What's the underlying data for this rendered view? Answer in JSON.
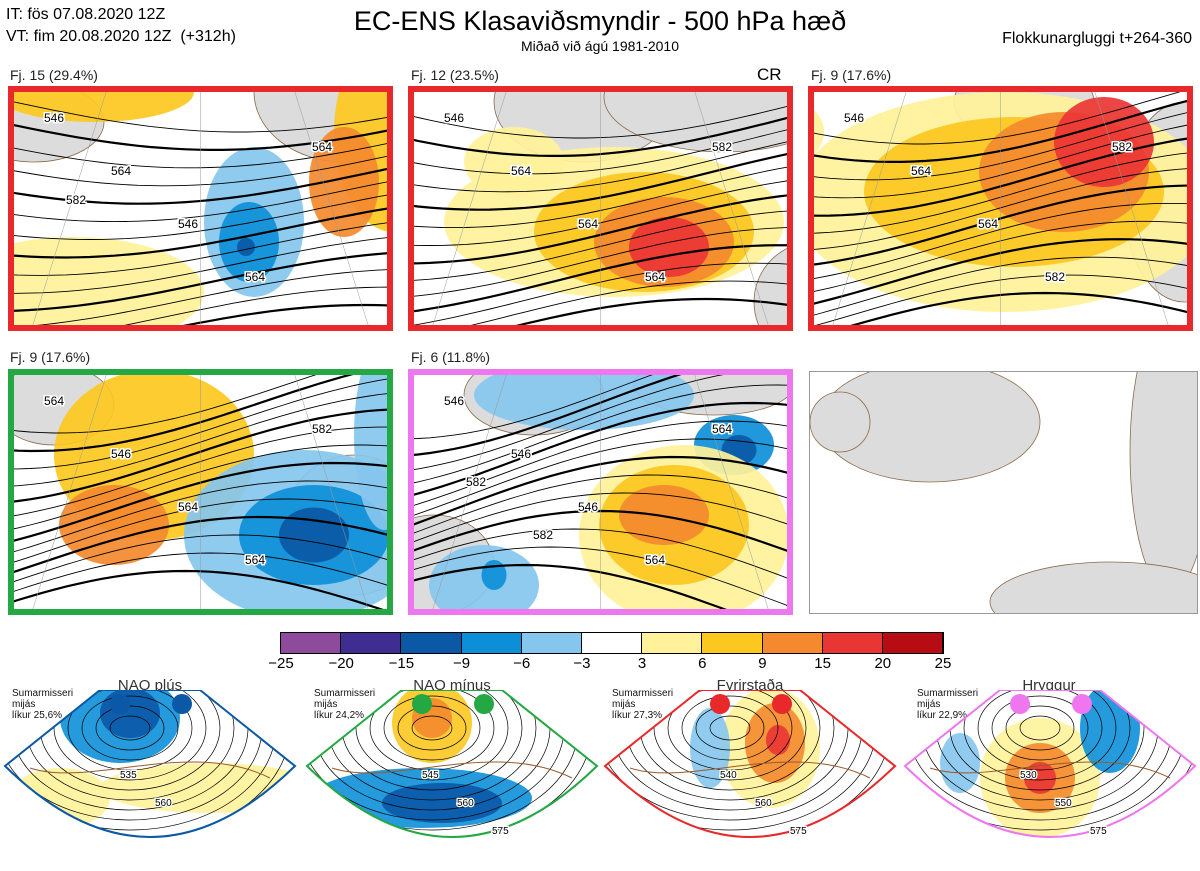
{
  "header": {
    "line_it": "IT: fös 07.08.2020 12Z",
    "line_vt": "VT: fim 20.08.2020 12Z  (+312h)",
    "title": "EC-ENS Klasaviðsmyndir - 500 hPa hæð",
    "subtitle": "Miðað við ágú 1981-2010",
    "window": "Flokkunargluggi t+264-360"
  },
  "panels": [
    {
      "label": "Fj. 15 (29.4%)",
      "border": "#e8282a",
      "contours": [
        "546",
        "564",
        "546",
        "564",
        "564",
        "582"
      ]
    },
    {
      "label": "Fj. 12 (23.5%)",
      "border": "#e8282a",
      "extra": "CR",
      "contours": [
        "546",
        "564",
        "564",
        "564",
        "582"
      ]
    },
    {
      "label": "Fj. 9 (17.6%)",
      "border": "#e8282a",
      "contours": [
        "546",
        "564",
        "564",
        "582",
        "582"
      ]
    },
    {
      "label": "Fj. 9 (17.6%)",
      "border": "#23a843",
      "contours": [
        "564",
        "546",
        "564",
        "564",
        "582"
      ]
    },
    {
      "label": "Fj. 6 (11.8%)",
      "border": "#ee76ee",
      "contours": [
        "546",
        "546",
        "546",
        "564",
        "564",
        "582",
        "582"
      ]
    }
  ],
  "colorbar": {
    "ticks": [
      "−25",
      "−20",
      "−15",
      "−9",
      "−6",
      "−3",
      "3",
      "6",
      "9",
      "15",
      "20",
      "25"
    ],
    "colors": [
      "#8e4b9c",
      "#3f2d91",
      "#0b58a6",
      "#0d8fd8",
      "#85c6ee",
      "#ffffff",
      "#fff29a",
      "#fcc820",
      "#f4892e",
      "#ea3535",
      "#b80c14"
    ]
  },
  "regimes": [
    {
      "title": "NAO plús",
      "color": "#0b58a6",
      "note": "Sumarmisseri\nmijás\nlíkur 25,6%",
      "contours": [
        "535",
        "560"
      ]
    },
    {
      "title": "NAO mínus",
      "color": "#23a843",
      "note": "Sumarmisseri\nmijás\nlíkur 24,2%",
      "contours": [
        "545",
        "560",
        "575"
      ]
    },
    {
      "title": "Fyrirstaða",
      "color": "#e8282a",
      "note": "Sumarmisseri\nmijás\nlíkur 27,3%",
      "contours": [
        "540",
        "560",
        "575"
      ]
    },
    {
      "title": "Hryggur",
      "color": "#ee76ee",
      "note": "Sumarmisseri\nmijás\nlíkur 22,9%",
      "contours": [
        "530",
        "550",
        "575"
      ]
    }
  ]
}
